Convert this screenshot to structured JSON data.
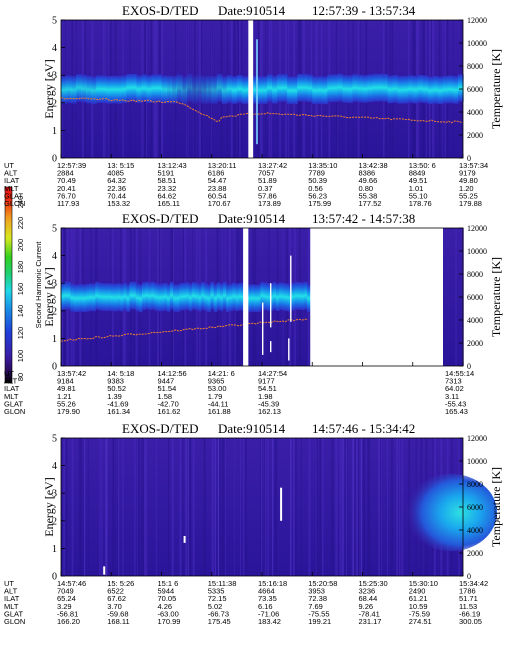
{
  "colorbar": {
    "label": "Second Harmonic Current",
    "ticks": [
      "80",
      "100",
      "120",
      "140",
      "160",
      "180",
      "200",
      "220",
      "240"
    ],
    "min": 80,
    "max": 240
  },
  "chart_data": [
    {
      "type": "heatmap",
      "title": "EXOS-D/TED",
      "date_label": "Date:910514",
      "time_range": "12:57:39 - 13:57:34",
      "ylabel": "Energy [eV]",
      "y2label": "Temperature [K]",
      "ylim": [
        0,
        5
      ],
      "y2lim": [
        0,
        12000
      ],
      "yticks": [
        "0",
        "1",
        "2",
        "3",
        "4",
        "5"
      ],
      "y2ticks": [
        "0",
        "2000",
        "4000",
        "6000",
        "8000",
        "10000",
        "12000"
      ],
      "gaps": [
        {
          "start": 0.466,
          "end": 0.478
        }
      ],
      "band": {
        "center_ev": 2.5,
        "height_ev": 1.0
      },
      "temperature_trace": true,
      "ephemeris": {
        "labels": [
          "UT",
          "ALT",
          "ILAT",
          "MLT",
          "GLAT",
          "GLON"
        ],
        "columns": [
          [
            "12:57:39",
            "2884",
            "70.49",
            "20.41",
            "76.70",
            "117.93"
          ],
          [
            "13: 5:15",
            "4085",
            "64.32",
            "22.36",
            "70.44",
            "153.32"
          ],
          [
            "13:12:43",
            "5191",
            "58.51",
            "23.32",
            "64.62",
            "165.11"
          ],
          [
            "13:20:11",
            "6186",
            "54.47",
            "23.88",
            "60.54",
            "170.67"
          ],
          [
            "13:27:42",
            "7057",
            "51.89",
            "0.37",
            "57.86",
            "173.89"
          ],
          [
            "13:35:10",
            "7789",
            "50.39",
            "0.56",
            "56.23",
            "175.99"
          ],
          [
            "13:42:38",
            "8386",
            "49.66",
            "0.80",
            "55.38",
            "177.52"
          ],
          [
            "13:50: 6",
            "8849",
            "49.51",
            "1.01",
            "55.10",
            "178.76"
          ],
          [
            "13:57:34",
            "9179",
            "49.80",
            "1.20",
            "55.25",
            "179.88"
          ]
        ]
      }
    },
    {
      "type": "heatmap",
      "title": "EXOS-D/TED",
      "date_label": "Date:910514",
      "time_range": "13:57:42 - 14:57:38",
      "ylabel": "Energy [eV]",
      "y2label": "Temperature [K]",
      "ylim": [
        0,
        5
      ],
      "y2lim": [
        0,
        12000
      ],
      "yticks": [
        "0",
        "1",
        "2",
        "3",
        "4",
        "5"
      ],
      "y2ticks": [
        "0",
        "2000",
        "4000",
        "6000",
        "8000",
        "10000",
        "12000"
      ],
      "gaps": [
        {
          "start": 0.453,
          "end": 0.466
        }
      ],
      "blank_after": 0.62,
      "band": {
        "center_ev": 2.5,
        "height_ev": 1.0
      },
      "temperature_trace": true,
      "ephemeris": {
        "labels": [
          "UT",
          "ALT",
          "ILAT",
          "MLT",
          "GLAT",
          "GLON"
        ],
        "columns": [
          [
            "13:57:42",
            "9184",
            "49.81",
            "1.21",
            "55.26",
            "179.90"
          ],
          [
            "14: 5:18",
            "9383",
            "50.52",
            "1.39",
            "-41.69",
            "161.34"
          ],
          [
            "14:12:56",
            "9447",
            "51.54",
            "1.58",
            "-42.70",
            "161.62"
          ],
          [
            "14:21: 6",
            "9365",
            "53.00",
            "1.79",
            "-44.11",
            "161.88"
          ],
          [
            "14:27:54",
            "9177",
            "54.51",
            "1.98",
            "-45.39",
            "162.13"
          ],
          [
            "14:55:14",
            "7313",
            "64.02",
            "3.11",
            "-55.43",
            "165.43"
          ]
        ]
      }
    },
    {
      "type": "heatmap",
      "title": "EXOS-D/TED",
      "date_label": "Date:910514",
      "time_range": "14:57:46 - 15:34:42",
      "ylabel": "Energy [eV]",
      "y2label": "Temperature [K]",
      "ylim": [
        0,
        5
      ],
      "y2lim": [
        0,
        12000
      ],
      "yticks": [
        "0",
        "1",
        "2",
        "3",
        "4",
        "5"
      ],
      "y2ticks": [
        "0",
        "2000",
        "4000",
        "6000",
        "8000",
        "10000",
        "12000"
      ],
      "gaps": [],
      "band": {
        "center_ev": 2.3,
        "height_ev": 1.4
      },
      "temperature_trace": false,
      "ephemeris": {
        "labels": [
          "UT",
          "ALT",
          "ILAT",
          "MLT",
          "GLAT",
          "GLON"
        ],
        "columns": [
          [
            "14:57:46",
            "7049",
            "65.24",
            "3.29",
            "-56.81",
            "166.20"
          ],
          [
            "15: 5:26",
            "6522",
            "67.62",
            "3.70",
            "-59.68",
            "168.11"
          ],
          [
            "15:1 6",
            "5944",
            "70.05",
            "4.26",
            "-63.00",
            "170.99"
          ],
          [
            "15:11:38",
            "5335",
            "72.15",
            "5.02",
            "-66.73",
            "175.45"
          ],
          [
            "15:16:18",
            "4664",
            "73.35",
            "6.16",
            "-71.06",
            "183.42"
          ],
          [
            "15:20:58",
            "3953",
            "72.38",
            "7.69",
            "-75.55",
            "199.21"
          ],
          [
            "15:25:30",
            "3236",
            "68.44",
            "9.26",
            "-78.41",
            "231.17"
          ],
          [
            "15:30:10",
            "2490",
            "61.21",
            "10.59",
            "-75.59",
            "274.51"
          ],
          [
            "15:34:42",
            "1786",
            "51.71",
            "11.53",
            "-66.19",
            "300.05"
          ]
        ]
      }
    }
  ]
}
